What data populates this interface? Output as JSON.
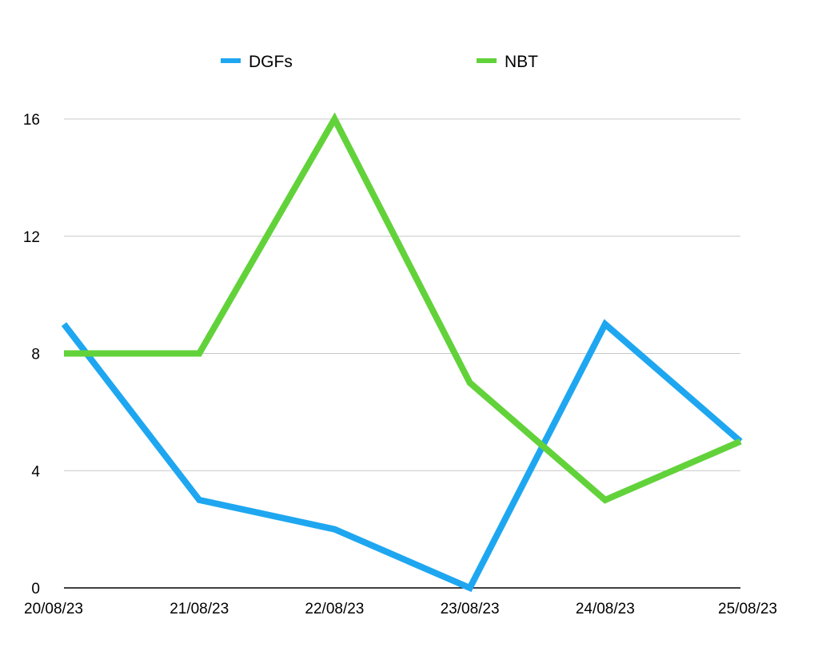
{
  "chart_data": {
    "type": "line",
    "title": "",
    "xlabel": "",
    "ylabel": "",
    "categories": [
      "20/08/23",
      "21/08/23",
      "22/08/23",
      "23/08/23",
      "24/08/23",
      "25/08/23"
    ],
    "series": [
      {
        "name": "DGFs",
        "color": "#1EA7F0",
        "values": [
          9,
          3,
          2,
          0,
          9,
          5
        ]
      },
      {
        "name": "NBT",
        "color": "#62D23A",
        "values": [
          8,
          8,
          16,
          7,
          3,
          5
        ]
      }
    ],
    "ylim": [
      0,
      16
    ],
    "yticks": [
      0,
      4,
      8,
      12,
      16
    ],
    "grid": true,
    "legend_position": "top-center"
  }
}
